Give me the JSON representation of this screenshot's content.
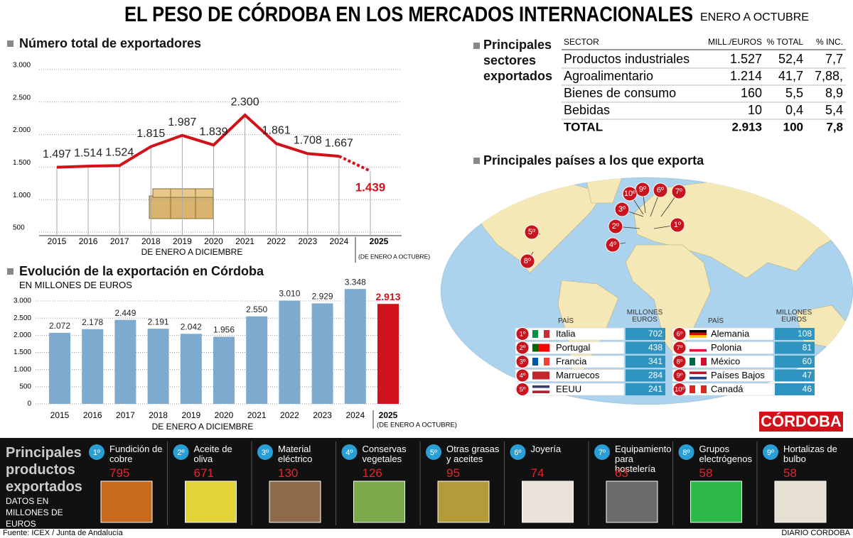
{
  "title": "EL PESO DE CÓRDOBA EN LOS MERCADOS INTERNACIONALES",
  "subtitle": "ENERO A OCTUBRE",
  "chart_data": [
    {
      "type": "line",
      "title": "Número total de exportadores",
      "x_label": "DE ENERO A DICIEMBRE",
      "note": "(DE ENERO A OCTUBRE)",
      "categories": [
        "2015",
        "2016",
        "2017",
        "2018",
        "2019",
        "2020",
        "2021",
        "2022",
        "2023",
        "2024",
        "2025"
      ],
      "values": [
        1497,
        1514,
        1524,
        1815,
        1987,
        1839,
        2300,
        1861,
        1708,
        1667,
        1439
      ],
      "value_labels": [
        "1.497",
        "1.514",
        "1.524",
        "1.815",
        "1.987",
        "1.839",
        "2.300",
        "1.861",
        "1.708",
        "1.667",
        "1.439"
      ],
      "color": "#d0121b",
      "dashed_last_segment": true,
      "ylim": [
        500,
        3000
      ],
      "yticks": [
        500,
        {
          "value": 1000,
          "label": "1.000"
        },
        {
          "value": 1500,
          "label": "1.500"
        },
        {
          "value": 2000,
          "label": "2.000"
        },
        {
          "value": 2500,
          "label": "2.500"
        },
        {
          "value": 3000,
          "label": "3.000"
        }
      ],
      "grid": true
    },
    {
      "type": "bar",
      "title": "Evolución de la exportación en Córdoba",
      "subtitle": "EN MILLONES DE EUROS",
      "x_label": "DE ENERO A DICIEMBRE",
      "note": "(DE ENERO A OCTUBRE)",
      "categories": [
        "2015",
        "2016",
        "2017",
        "2018",
        "2019",
        "2020",
        "2021",
        "2022",
        "2023",
        "2024",
        "2025"
      ],
      "values": [
        2072,
        2178,
        2449,
        2191,
        2042,
        1956,
        2550,
        3010,
        2929,
        3348,
        2913
      ],
      "value_labels": [
        "2.072",
        "2.178",
        "2.449",
        "2.191",
        "2.042",
        "1.956",
        "2.550",
        "3.010",
        "2.929",
        "3.348",
        "2.913"
      ],
      "colors": [
        "#7eaad0",
        "#7eaad0",
        "#7eaad0",
        "#7eaad0",
        "#7eaad0",
        "#7eaad0",
        "#7eaad0",
        "#7eaad0",
        "#7eaad0",
        "#7eaad0",
        "#d0121b"
      ],
      "ylim": [
        0,
        3500
      ],
      "yticks": [
        0,
        500,
        {
          "value": 1000,
          "label": "1.000"
        },
        {
          "value": 1500,
          "label": "1.500"
        },
        {
          "value": 2000,
          "label": "2.000"
        },
        {
          "value": 2500,
          "label": "2.500"
        },
        {
          "value": 3000,
          "label": "3.000"
        }
      ],
      "grid": true
    }
  ],
  "sectors": {
    "title": "Principales sectores exportados",
    "columns": [
      "SECTOR",
      "MILL./EUROS",
      "% TOTAL",
      "% INC."
    ],
    "rows": [
      [
        "Productos industriales",
        "1.527",
        "52,4",
        "7,7"
      ],
      [
        "Agroalimentario",
        "1.214",
        "41,7",
        "7,88,"
      ],
      [
        "Bienes de consumo",
        "160",
        "5,5",
        "8,9"
      ],
      [
        "Bebidas",
        "10",
        "0,4",
        "5,4"
      ]
    ],
    "total": [
      "TOTAL",
      "2.913",
      "100",
      "7,8"
    ]
  },
  "countries": {
    "title": "Principales países a los que exporta",
    "columns": [
      "PAÍS",
      "MILLONES EUROS"
    ],
    "rows": [
      {
        "rank": "1º",
        "name": "Italia",
        "value": "702"
      },
      {
        "rank": "2º",
        "name": "Portugal",
        "value": "438"
      },
      {
        "rank": "3º",
        "name": "Francia",
        "value": "341"
      },
      {
        "rank": "4º",
        "name": "Marruecos",
        "value": "284"
      },
      {
        "rank": "5º",
        "name": "EEUU",
        "value": "241"
      },
      {
        "rank": "6º",
        "name": "Alemania",
        "value": "108"
      },
      {
        "rank": "7º",
        "name": "Polonia",
        "value": "81"
      },
      {
        "rank": "8º",
        "name": "México",
        "value": "60"
      },
      {
        "rank": "9º",
        "name": "Países Bajos",
        "value": "47"
      },
      {
        "rank": "10º",
        "name": "Canadá",
        "value": "46"
      }
    ]
  },
  "products": {
    "title": "Principales productos exportados",
    "subtitle": "DATOS EN MILLONES DE EUROS",
    "items": [
      {
        "rank": "1º",
        "name": "Fundición de cobre",
        "value": "795"
      },
      {
        "rank": "2º",
        "name": "Aceite de oliva",
        "value": "671"
      },
      {
        "rank": "3º",
        "name": "Material eléctrico",
        "value": "130"
      },
      {
        "rank": "4º",
        "name": "Conservas vegetales",
        "value": "126"
      },
      {
        "rank": "5º",
        "name": "Otras grasas y aceites",
        "value": "95"
      },
      {
        "rank": "6º",
        "name": "Joyería",
        "value": "74"
      },
      {
        "rank": "7º",
        "name": "Equipamiento para hostelería",
        "value": "63"
      },
      {
        "rank": "8º",
        "name": "Grupos electrógenos",
        "value": "58"
      },
      {
        "rank": "9º",
        "name": "Hortalizas de bulbo",
        "value": "58"
      }
    ]
  },
  "brand": "CÓRDOBA",
  "source": "Fuente: ICEX / Junta de Andalucía",
  "publisher": "DIARIO CÓRDOBA"
}
